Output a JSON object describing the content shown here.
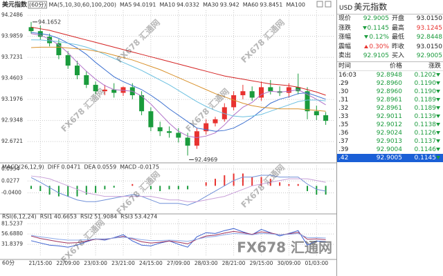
{
  "chart_data": [
    {
      "type": "candlestick",
      "title": "美元指数",
      "period": "(60分)",
      "indicator": "MA(5,10,30,60,100,200)",
      "up_color": "#e8322f",
      "down_color": "#1a9b3c",
      "grid": true,
      "categories": [
        null,
        "21/15:00",
        null,
        null,
        "22/09:00",
        null,
        null,
        "23/03:00",
        null,
        null,
        "23/21:00",
        null,
        null,
        "24/15:00",
        null,
        null,
        "27/09:00",
        null,
        null,
        "28/03:00",
        null,
        null,
        "28/21:00",
        null,
        null,
        "29/15:00",
        null,
        null,
        "30/09:00",
        null,
        null,
        "01/03:00",
        null
      ],
      "open": [
        94.1,
        94.05,
        93.98,
        93.9,
        93.75,
        93.62,
        93.5,
        93.38,
        93.3,
        93.32,
        93.28,
        93.35,
        93.25,
        93.05,
        92.85,
        92.8,
        92.78,
        92.72,
        92.62,
        92.8,
        92.9,
        92.95,
        93.1,
        93.25,
        93.3,
        93.22,
        93.35,
        93.3,
        93.28,
        93.35,
        93.3,
        93.05,
        93.0
      ],
      "high": [
        94.1652,
        94.12,
        94.02,
        93.95,
        93.8,
        93.68,
        93.55,
        93.42,
        93.38,
        93.4,
        93.36,
        93.4,
        93.3,
        93.1,
        92.92,
        92.86,
        92.84,
        92.78,
        92.84,
        92.95,
        92.98,
        93.15,
        93.3,
        93.38,
        93.36,
        93.42,
        93.44,
        93.36,
        93.4,
        93.52,
        93.35,
        93.12,
        93.04
      ],
      "low": [
        94.02,
        93.94,
        93.86,
        93.7,
        93.58,
        93.45,
        93.34,
        93.26,
        93.25,
        93.22,
        93.24,
        93.2,
        93.0,
        92.8,
        92.74,
        92.72,
        92.66,
        92.4969,
        92.58,
        92.76,
        92.86,
        92.92,
        93.06,
        93.2,
        93.18,
        93.18,
        93.26,
        93.24,
        93.22,
        93.26,
        92.95,
        92.94,
        92.88
      ],
      "close": [
        94.05,
        93.98,
        93.9,
        93.75,
        93.62,
        93.5,
        93.38,
        93.3,
        93.32,
        93.28,
        93.35,
        93.25,
        93.05,
        92.85,
        92.8,
        92.78,
        92.72,
        92.62,
        92.8,
        92.9,
        92.95,
        93.1,
        93.25,
        93.3,
        93.22,
        93.35,
        93.3,
        93.28,
        93.35,
        93.3,
        93.05,
        93.0,
        92.93
      ],
      "series": [
        {
          "name": "MA5",
          "color": "#b070c8",
          "values": [
            94.0191,
            94.0,
            93.95,
            93.88,
            93.78,
            93.66,
            93.55,
            93.45,
            93.37,
            93.32,
            93.31,
            93.3,
            93.24,
            93.14,
            93.02,
            92.9,
            92.8,
            92.74,
            92.72,
            92.74,
            92.78,
            92.88,
            93.0,
            93.1,
            93.16,
            93.26,
            93.3,
            93.29,
            93.3,
            93.32,
            93.26,
            93.2,
            93.13
          ]
        },
        {
          "name": "MA10",
          "color": "#3a6fd0",
          "values": [
            94.0332,
            94.02,
            94.0,
            93.96,
            93.9,
            93.84,
            93.76,
            93.66,
            93.57,
            93.48,
            93.42,
            93.37,
            93.32,
            93.25,
            93.17,
            93.08,
            93.0,
            92.92,
            92.84,
            92.82,
            92.8,
            92.81,
            92.84,
            92.9,
            92.97,
            93.06,
            93.15,
            93.2,
            93.23,
            93.27,
            93.28,
            93.24,
            93.2
          ]
        },
        {
          "name": "MA30",
          "color": "#6cc0e0",
          "values": [
            93.942,
            93.94,
            93.93,
            93.92,
            93.9,
            93.88,
            93.85,
            93.81,
            93.76,
            93.71,
            93.66,
            93.61,
            93.56,
            93.5,
            93.44,
            93.38,
            93.31,
            93.24,
            93.17,
            93.11,
            93.06,
            93.02,
            92.99,
            92.98,
            92.99,
            93.01,
            93.05,
            93.09,
            93.13,
            93.17,
            93.19,
            93.19,
            93.18
          ]
        },
        {
          "name": "MA60",
          "color": "#d8902a",
          "values": [
            93.8451,
            93.85,
            93.85,
            93.85,
            93.84,
            93.83,
            93.82,
            93.8,
            93.78,
            93.75,
            93.72,
            93.69,
            93.65,
            93.61,
            93.57,
            93.52,
            93.47,
            93.42,
            93.37,
            93.32,
            93.27,
            93.23,
            93.19,
            93.15,
            93.12,
            93.1,
            93.09,
            93.08,
            93.08,
            93.08,
            93.07,
            93.06,
            93.05
          ]
        },
        {
          "name": "MA100",
          "color": "#d42020",
          "show_value": false,
          "values": [
            94.1,
            94.08,
            94.06,
            94.03,
            94.0,
            93.97,
            93.94,
            93.91,
            93.88,
            93.85,
            93.82,
            93.79,
            93.76,
            93.73,
            93.7,
            93.67,
            93.64,
            93.61,
            93.58,
            93.55,
            93.52,
            93.49,
            93.47,
            93.45,
            93.43,
            93.41,
            93.39,
            93.38,
            93.37,
            93.35,
            93.32,
            93.29,
            93.25
          ]
        }
      ],
      "ylim": [
        92.44,
        94.31
      ],
      "yticks": [
        94.2486,
        93.9859,
        93.7231,
        93.4603,
        93.1976,
        92.9348,
        92.6721
      ]
    },
    {
      "type": "macd",
      "title": "MACD(26,12,9)",
      "grid": true,
      "series": [
        {
          "name": "DIFF",
          "color": "#7090d8",
          "values": [
            0.0471,
            0.02,
            -0.01,
            -0.04,
            -0.06,
            -0.08,
            -0.09,
            -0.09,
            -0.08,
            -0.07,
            -0.06,
            -0.05,
            -0.06,
            -0.08,
            -0.1,
            -0.1,
            -0.1,
            -0.11,
            -0.09,
            -0.06,
            -0.03,
            0.0,
            0.03,
            0.05,
            0.05,
            0.06,
            0.06,
            0.05,
            0.05,
            0.05,
            0.01,
            -0.02,
            -0.03
          ]
        },
        {
          "name": "DEA",
          "color": "#c8a0d8",
          "values": [
            0.0559,
            0.05,
            0.04,
            0.02,
            0.0,
            -0.02,
            -0.04,
            -0.05,
            -0.06,
            -0.06,
            -0.06,
            -0.06,
            -0.06,
            -0.06,
            -0.07,
            -0.08,
            -0.08,
            -0.09,
            -0.09,
            -0.08,
            -0.07,
            -0.06,
            -0.04,
            -0.02,
            0.0,
            0.01,
            0.02,
            0.03,
            0.04,
            0.04,
            0.04,
            0.03,
            0.02
          ]
        }
      ],
      "bars": {
        "name": "MACD",
        "color": "#a050b0",
        "up_color": "#e8322f",
        "down_color": "#1a9b3c",
        "values": [
          -0.0175,
          -0.03,
          -0.05,
          -0.06,
          -0.06,
          -0.06,
          -0.05,
          -0.04,
          -0.02,
          -0.01,
          0.0,
          0.01,
          0.0,
          -0.02,
          -0.03,
          -0.02,
          -0.02,
          -0.02,
          0.0,
          0.02,
          0.04,
          0.06,
          0.07,
          0.07,
          0.05,
          0.05,
          0.04,
          0.02,
          0.01,
          0.01,
          -0.03,
          -0.05,
          -0.05
        ]
      },
      "ylim": [
        -0.14,
        0.115
      ],
      "yticks": [
        0.0954,
        0.0277,
        {
          "value": -0.04,
          "label": "-0.0400"
        }
      ]
    },
    {
      "type": "line",
      "title": "RSI(6,12,24)",
      "grid": true,
      "series": [
        {
          "name": "RSI1",
          "color": "#3a5fd0",
          "values": [
            40.6653,
            35,
            30,
            28,
            25,
            30,
            38,
            45,
            42,
            48,
            55,
            40,
            30,
            28,
            35,
            40,
            32,
            25,
            50,
            60,
            58,
            65,
            70,
            62,
            55,
            68,
            60,
            52,
            58,
            65,
            30,
            40,
            38
          ]
        },
        {
          "name": "RSI2",
          "color": "#a0305a",
          "values": [
            51.9084,
            46,
            42,
            38,
            35,
            36,
            40,
            44,
            44,
            47,
            51,
            45,
            38,
            35,
            37,
            40,
            37,
            33,
            44,
            52,
            54,
            59,
            63,
            60,
            56,
            62,
            59,
            55,
            57,
            61,
            44,
            45,
            43
          ]
        },
        {
          "name": "RSI3",
          "color": "#8aa8e8",
          "values": [
            53.4274,
            50,
            47,
            44,
            42,
            42,
            43,
            45,
            45,
            47,
            49,
            47,
            43,
            41,
            41,
            42,
            41,
            39,
            44,
            49,
            51,
            55,
            58,
            57,
            55,
            58,
            57,
            55,
            56,
            58,
            48,
            48,
            47
          ]
        }
      ],
      "ylim": [
        2,
        92
      ],
      "yticks": [
        81.5237,
        {
          "value": 56.688,
          "label": "56.6880"
        },
        31.8379
      ]
    }
  ],
  "watermark": "FX678 汇通网",
  "footer": {
    "period": "60分"
  },
  "quote": {
    "symbol": "USD",
    "name": "美元指数",
    "rows": [
      [
        "现价",
        "92.9005",
        "开盘",
        "93.0150"
      ],
      [
        "涨跌",
        "0.1145",
        "最高",
        "93.1245"
      ],
      [
        "涨幅",
        "0.12%",
        "最低",
        "92.8448"
      ],
      [
        "震幅",
        "0.30%",
        "昨收",
        "93.0150"
      ],
      [
        "卖出",
        "92.9105",
        "买入",
        "92.9005"
      ]
    ]
  },
  "ticks": {
    "header": [
      "时间",
      "价格",
      "涨跌"
    ],
    "rows": [
      [
        "16:03",
        "92.8948",
        "0.1202"
      ],
      [
        ".29",
        "92.8960",
        "0.1190"
      ],
      [
        ".30",
        "92.8960",
        "0.1190"
      ],
      [
        ".31",
        "92.8961",
        "0.1189"
      ],
      [
        ".32",
        "92.8961",
        "0.1189"
      ],
      [
        ".33",
        "92.9011",
        "0.1139"
      ],
      [
        ".35",
        "92.9012",
        "0.1138"
      ],
      [
        ".36",
        "92.9024",
        "0.1126"
      ],
      [
        ".37",
        "92.9013",
        "0.1137"
      ],
      [
        ".39",
        "92.9004",
        "0.1146"
      ],
      [
        ".42",
        "92.9005",
        "0.1145"
      ]
    ]
  }
}
